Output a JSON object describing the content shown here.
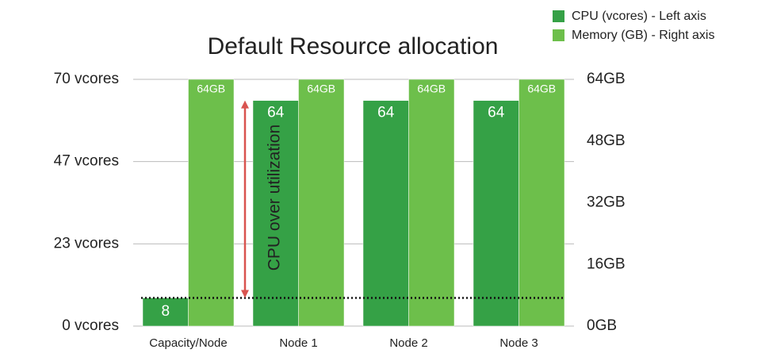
{
  "chart_data": {
    "type": "bar",
    "title": "Default Resource allocation",
    "categories": [
      "Capacity/Node",
      "Node 1",
      "Node 2",
      "Node 3"
    ],
    "series": [
      {
        "name": "CPU (vcores) - Left axis",
        "color": "#35a146",
        "values": [
          8,
          64,
          64,
          64
        ]
      },
      {
        "name": "Memory (GB) - Right axis",
        "color": "#6dbf4b",
        "axis": "y2",
        "values": [
          64,
          64,
          64,
          64
        ],
        "value_labels": [
          "64GB",
          "64GB",
          "64GB",
          "64GB"
        ]
      }
    ],
    "ylim": [
      0,
      70
    ],
    "yticks": [
      {
        "value": 0,
        "label": "0 vcores"
      },
      {
        "value": 23.33,
        "label": "23 vcores"
      },
      {
        "value": 46.67,
        "label": "47 vcores"
      },
      {
        "value": 70,
        "label": "70 vcores"
      }
    ],
    "y2lim": [
      0,
      64
    ],
    "y2ticks": [
      {
        "value": 0,
        "label": "0GB"
      },
      {
        "value": 16,
        "label": "16GB"
      },
      {
        "value": 32,
        "label": "32GB"
      },
      {
        "value": 48,
        "label": "48GB"
      },
      {
        "value": 64,
        "label": "64GB"
      }
    ],
    "grid": true,
    "legend": "top-right",
    "threshold": 8,
    "annotation": {
      "text": "CPU over utilization",
      "from": 8,
      "to": 64,
      "color": "#d9534f"
    }
  }
}
